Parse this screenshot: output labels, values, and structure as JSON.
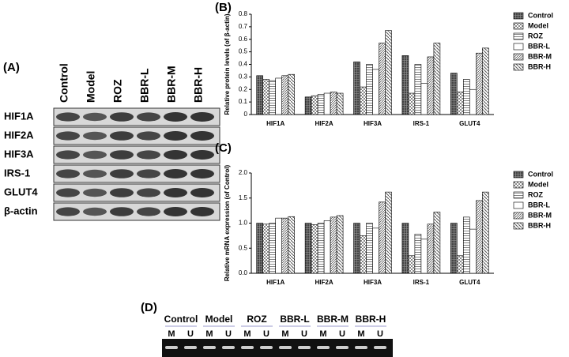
{
  "panels": {
    "a": {
      "label": "(A)",
      "columns": [
        "Control",
        "Model",
        "ROZ",
        "BBR-L",
        "BBR-M",
        "BBR-H"
      ],
      "rows": [
        "HIF1A",
        "HIF2A",
        "HIF3A",
        "IRS-1",
        "GLUT4",
        "β-actin"
      ]
    },
    "d": {
      "label": "(D)",
      "groups": [
        "Control",
        "Model",
        "ROZ",
        "BBR-L",
        "BBR-M",
        "BBR-H"
      ],
      "lanes": [
        "M",
        "U"
      ]
    }
  },
  "chart_data": [
    {
      "type": "bar",
      "label": "(B)",
      "y_label": "Relative protein levels (of β-actin)",
      "categories": [
        "HIF1A",
        "HIF2A",
        "HIF3A",
        "IRS-1",
        "GLUT4"
      ],
      "series": [
        {
          "name": "Control",
          "color": "#555555",
          "pattern": "crosshatch",
          "values": [
            0.31,
            0.14,
            0.42,
            0.47,
            0.33
          ]
        },
        {
          "name": "Model",
          "color": "#777777",
          "pattern": "checker",
          "values": [
            0.28,
            0.15,
            0.22,
            0.17,
            0.18
          ]
        },
        {
          "name": "ROZ",
          "color": "#666666",
          "pattern": "hlines",
          "values": [
            0.27,
            0.16,
            0.4,
            0.4,
            0.28
          ]
        },
        {
          "name": "BBR-L",
          "color": "#ffffff",
          "pattern": "none",
          "values": [
            0.29,
            0.17,
            0.36,
            0.25,
            0.2
          ]
        },
        {
          "name": "BBR-M",
          "color": "#666666",
          "pattern": "diag",
          "values": [
            0.31,
            0.18,
            0.57,
            0.46,
            0.49
          ]
        },
        {
          "name": "BBR-H",
          "color": "#666666",
          "pattern": "diag2",
          "values": [
            0.32,
            0.17,
            0.67,
            0.57,
            0.53
          ]
        }
      ],
      "ylim": [
        0,
        0.8
      ],
      "yticks": [
        0,
        0.1,
        0.2,
        0.3,
        0.4,
        0.5,
        0.6,
        0.7,
        0.8
      ]
    },
    {
      "type": "bar",
      "label": "(C)",
      "y_label": "Relative mRNA expression (of Control)",
      "categories": [
        "HIF1A",
        "HIF2A",
        "HIF3A",
        "IRS-1",
        "GLUT4"
      ],
      "series": [
        {
          "name": "Control",
          "color": "#555555",
          "pattern": "crosshatch",
          "values": [
            1.0,
            1.0,
            1.0,
            1.0,
            1.0
          ]
        },
        {
          "name": "Model",
          "color": "#777777",
          "pattern": "checker",
          "values": [
            0.98,
            0.97,
            0.75,
            0.35,
            0.35
          ]
        },
        {
          "name": "ROZ",
          "color": "#666666",
          "pattern": "hlines",
          "values": [
            1.0,
            1.0,
            1.0,
            0.78,
            1.12
          ]
        },
        {
          "name": "BBR-L",
          "color": "#ffffff",
          "pattern": "none",
          "values": [
            1.1,
            1.05,
            0.9,
            0.68,
            0.88
          ]
        },
        {
          "name": "BBR-M",
          "color": "#666666",
          "pattern": "diag",
          "values": [
            1.1,
            1.12,
            1.42,
            0.98,
            1.45
          ]
        },
        {
          "name": "BBR-H",
          "color": "#666666",
          "pattern": "diag2",
          "values": [
            1.13,
            1.15,
            1.62,
            1.22,
            1.62
          ]
        }
      ],
      "ylim": [
        0,
        2.0
      ],
      "yticks": [
        {
          "value": 0,
          "label": "0.0"
        },
        0.5,
        {
          "value": 1,
          "label": "1.0"
        },
        1.5,
        {
          "value": 2,
          "label": "2.0"
        }
      ]
    }
  ]
}
